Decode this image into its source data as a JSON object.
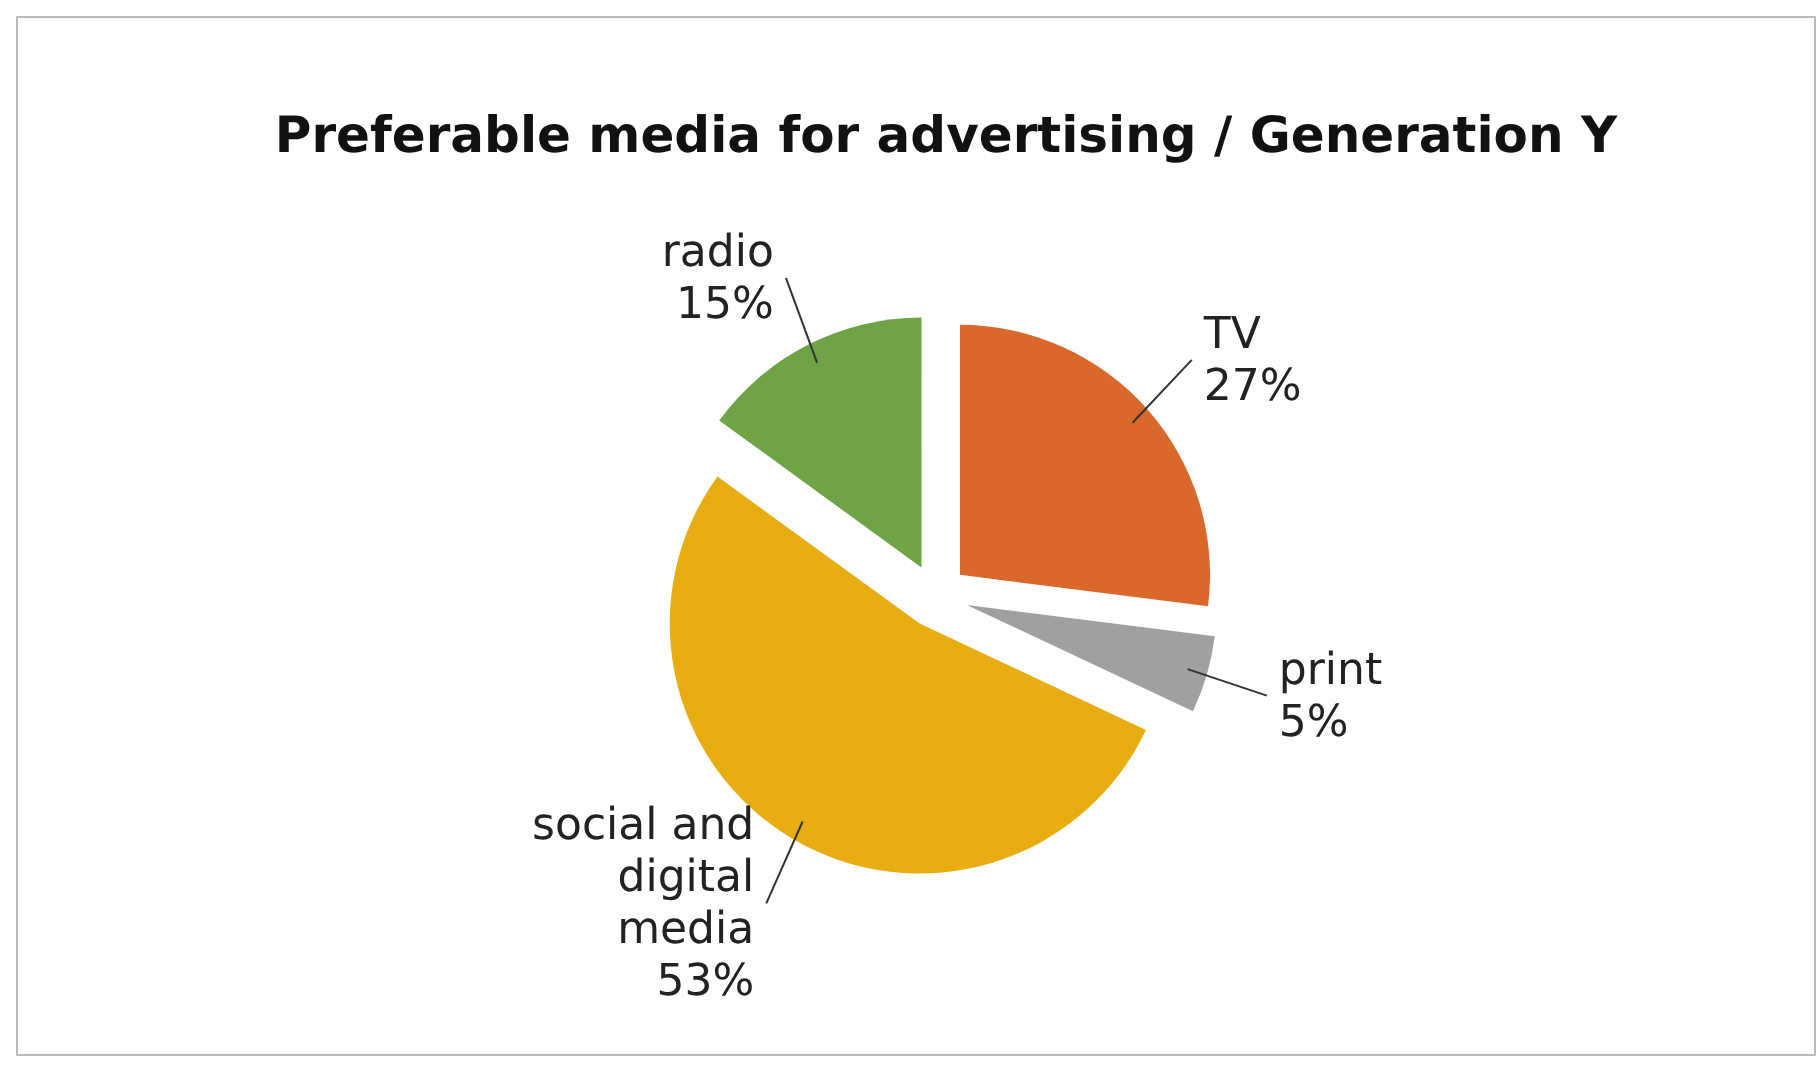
{
  "chart_data": {
    "type": "pie",
    "title": "Preferable media for advertising / Generation Y",
    "categories": [
      "TV",
      "print",
      "social and digital media",
      "radio"
    ],
    "values": [
      27,
      5,
      53,
      15
    ],
    "value_labels": [
      "27%",
      "5%",
      "53%",
      "15%"
    ],
    "colors": [
      "#d9682a",
      "#a0a0a0",
      "#e8ad12",
      "#6ea445"
    ]
  }
}
